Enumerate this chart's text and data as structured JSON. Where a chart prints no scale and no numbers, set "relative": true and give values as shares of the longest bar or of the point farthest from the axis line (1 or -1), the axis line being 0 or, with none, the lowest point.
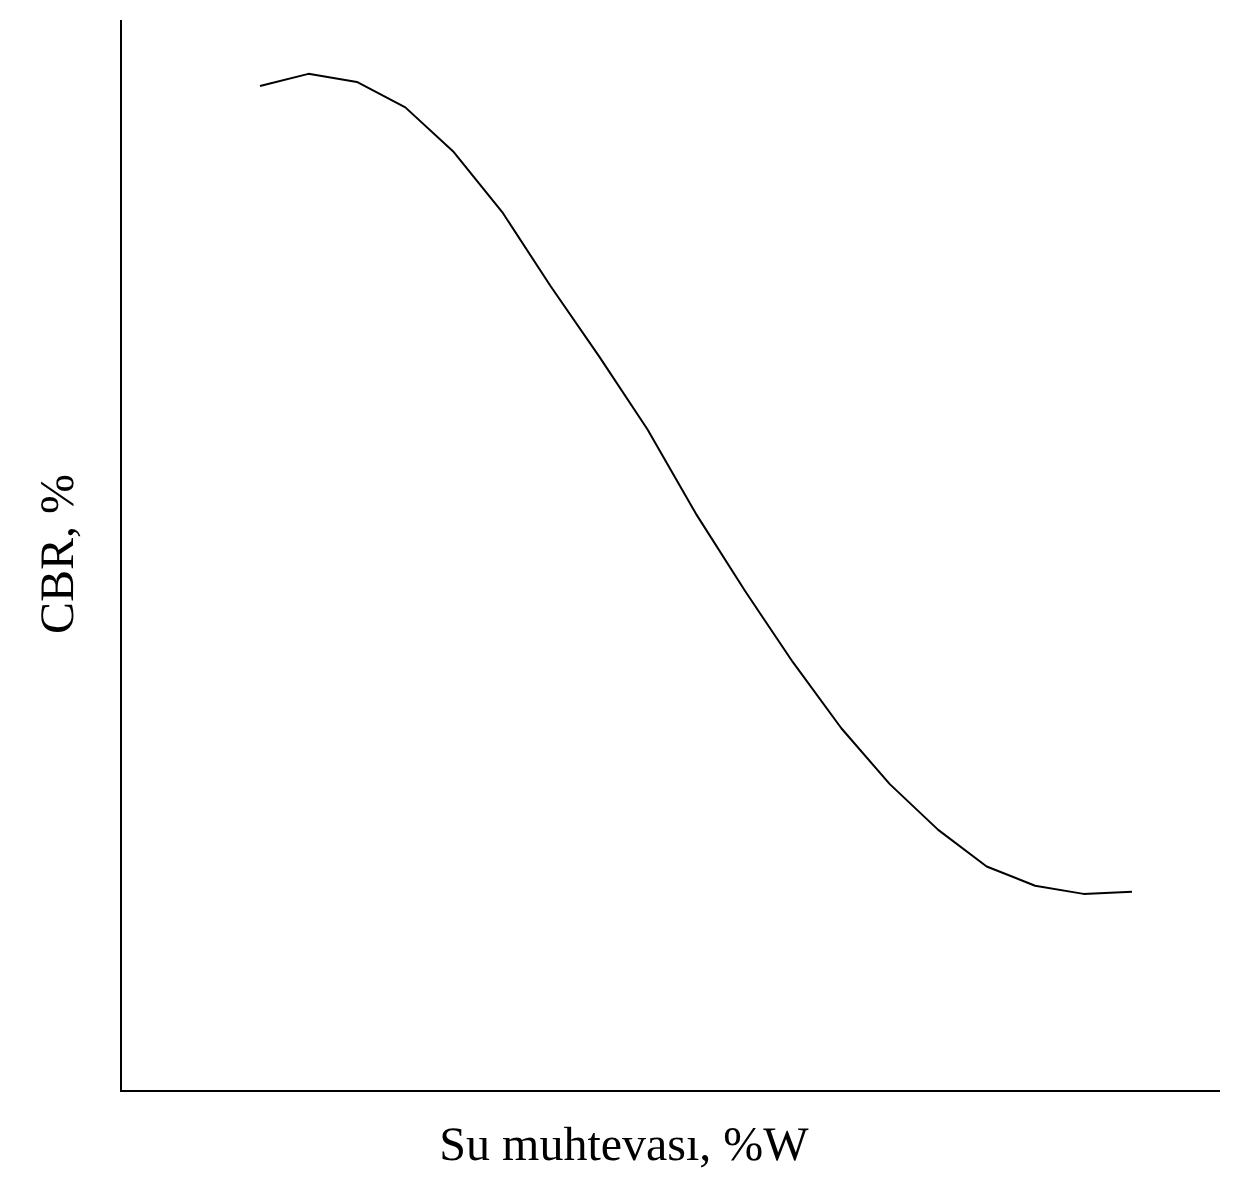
{
  "chart_data": {
    "type": "line",
    "relative": true,
    "xlabel": "Su muhtevası, %W",
    "ylabel": "CBR, %",
    "color": "#000000",
    "marker": "none",
    "legend": false,
    "categories": [
      null,
      null,
      null,
      null,
      null,
      null,
      null,
      null,
      null,
      null,
      null,
      null,
      null,
      null,
      null,
      null,
      null,
      null,
      null
    ],
    "values": [
      0.988,
      1,
      0.992,
      0.967,
      0.923,
      0.864,
      0.791,
      0.722,
      0.65,
      0.567,
      0.492,
      0.421,
      0.356,
      0.301,
      0.256,
      0.22,
      0.201,
      0.193,
      0.195
    ]
  }
}
